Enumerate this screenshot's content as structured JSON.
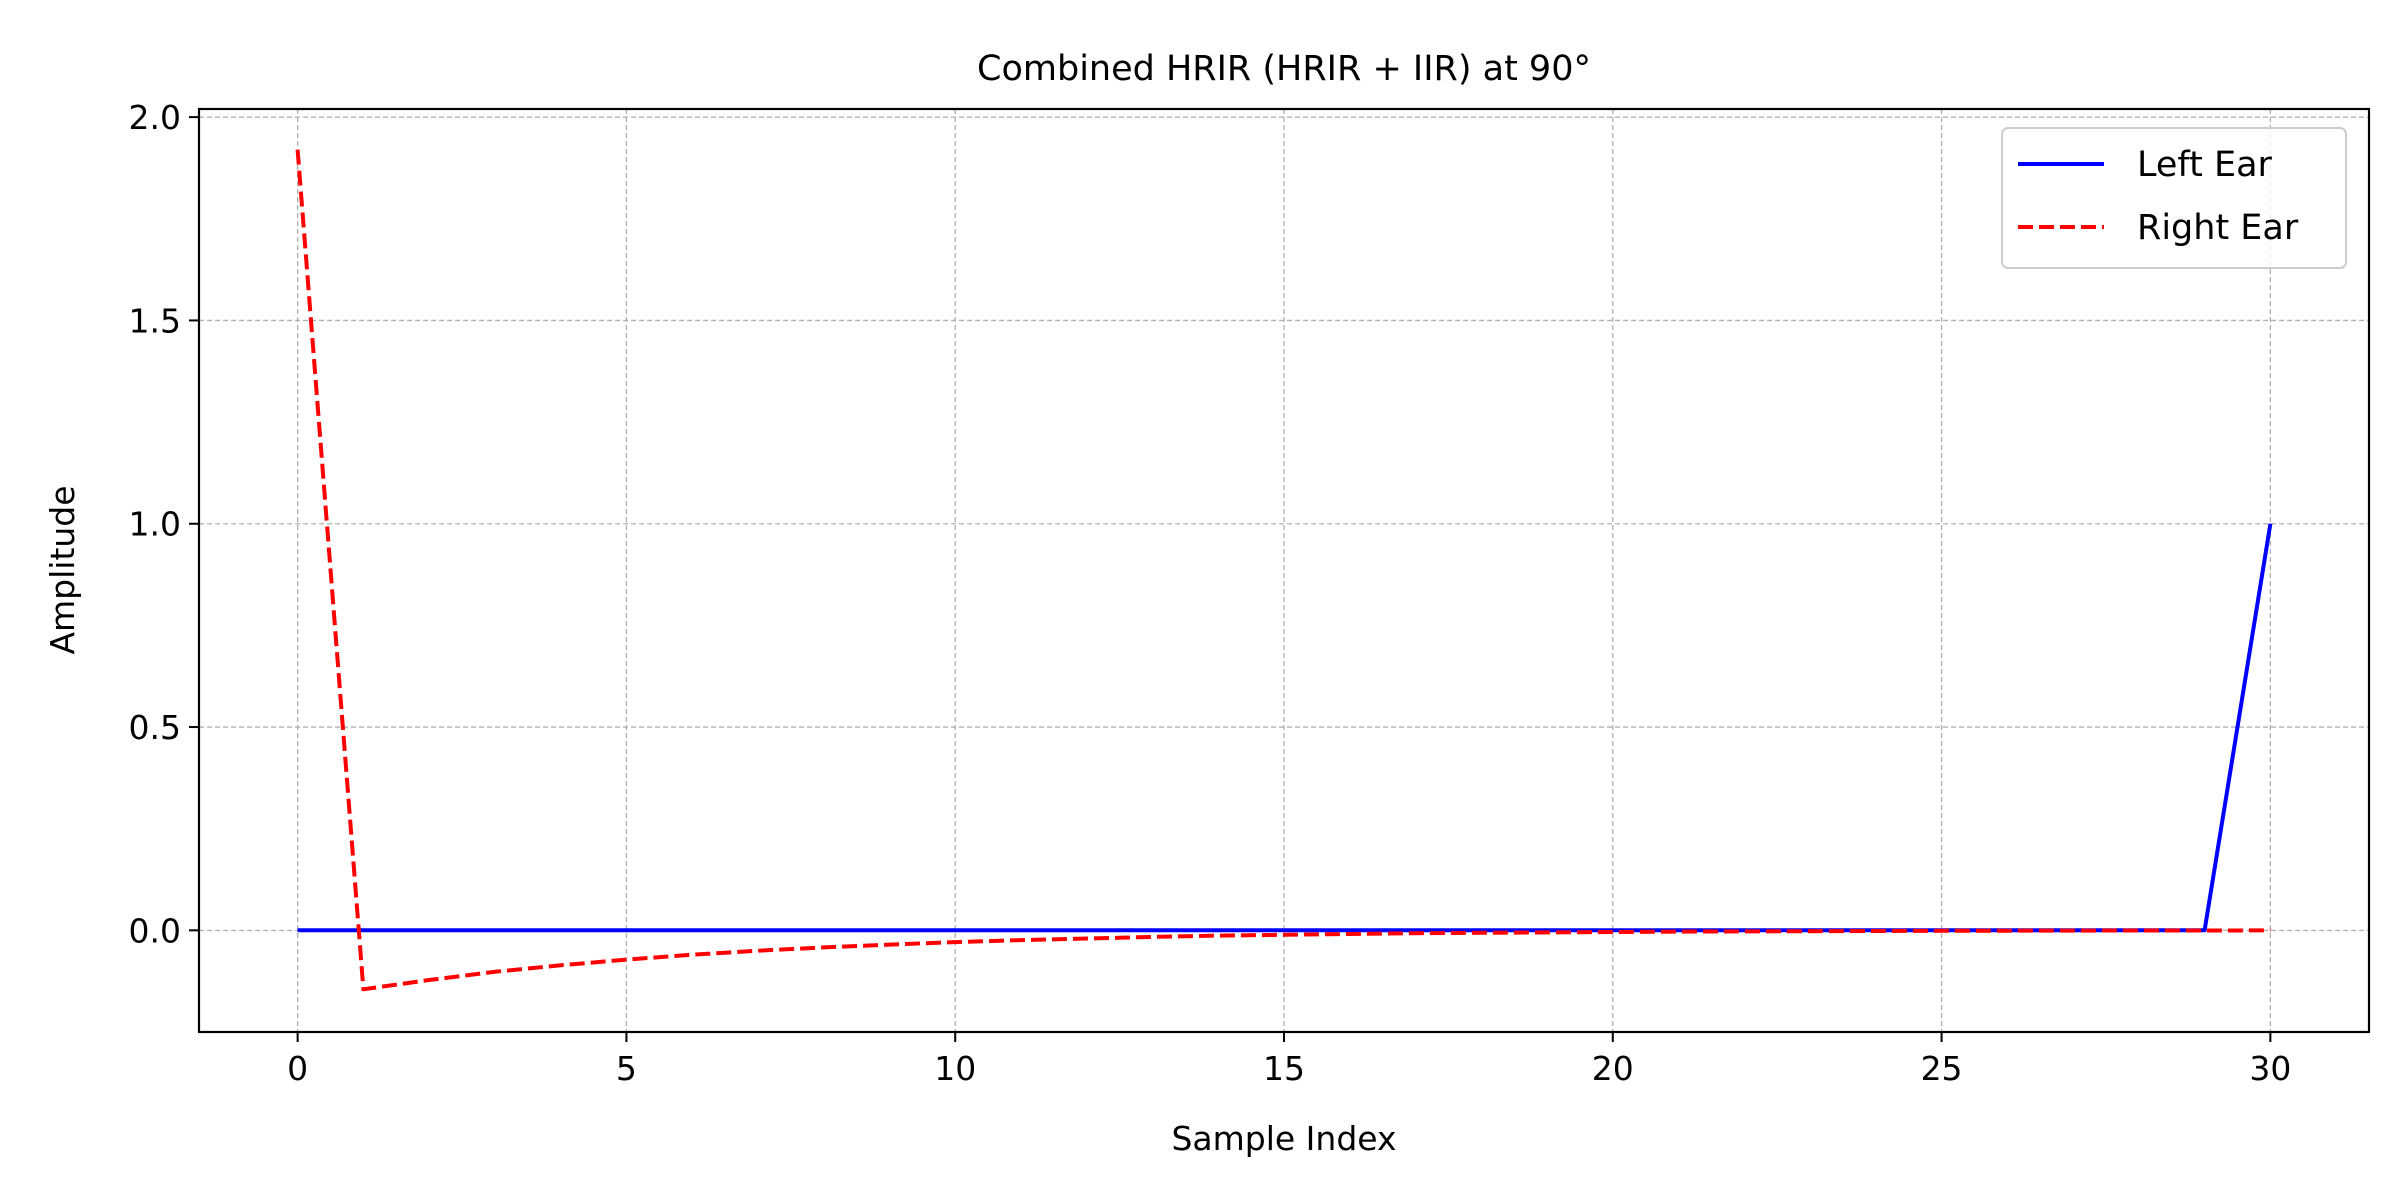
{
  "chart_data": {
    "type": "line",
    "title": "Combined HRIR (HRIR + IIR) at 90°",
    "xlabel": "Sample Index",
    "ylabel": "Amplitude",
    "xlim": [
      -1.5,
      31.5
    ],
    "ylim": [
      -0.25,
      2.02
    ],
    "xticks": [
      0,
      5,
      10,
      15,
      20,
      25,
      30
    ],
    "xtick_labels": [
      "0",
      "5",
      "10",
      "15",
      "20",
      "25",
      "30"
    ],
    "yticks": [
      0.0,
      0.5,
      1.0,
      1.5,
      2.0
    ],
    "ytick_labels": [
      "0.0",
      "0.5",
      "1.0",
      "1.5",
      "2.0"
    ],
    "grid": true,
    "legend_position": "top-right",
    "x": [
      0,
      1,
      2,
      3,
      4,
      5,
      6,
      7,
      8,
      9,
      10,
      11,
      12,
      13,
      14,
      15,
      16,
      17,
      18,
      19,
      20,
      21,
      22,
      23,
      24,
      25,
      26,
      27,
      28,
      29,
      30
    ],
    "series": [
      {
        "name": "Left Ear",
        "color": "#0000ff",
        "line_style": "solid",
        "values": [
          0,
          0,
          0,
          0,
          0,
          0,
          0,
          0,
          0,
          0,
          0,
          0,
          0,
          0,
          0,
          0,
          0,
          0,
          0,
          0,
          0,
          0,
          0,
          0,
          0,
          0,
          0,
          0,
          0,
          0,
          1.0
        ]
      },
      {
        "name": "Right Ear",
        "color": "#ff0000",
        "line_style": "dashed",
        "values": [
          1.92,
          -0.145,
          -0.122,
          -0.102,
          -0.086,
          -0.072,
          -0.06,
          -0.05,
          -0.042,
          -0.035,
          -0.029,
          -0.024,
          -0.02,
          -0.016,
          -0.013,
          -0.011,
          -0.009,
          -0.007,
          -0.006,
          -0.005,
          -0.004,
          -0.003,
          -0.0025,
          -0.002,
          -0.0015,
          -0.001,
          -0.0008,
          -0.0006,
          -0.0004,
          -0.0003,
          -0.0002
        ]
      }
    ]
  }
}
